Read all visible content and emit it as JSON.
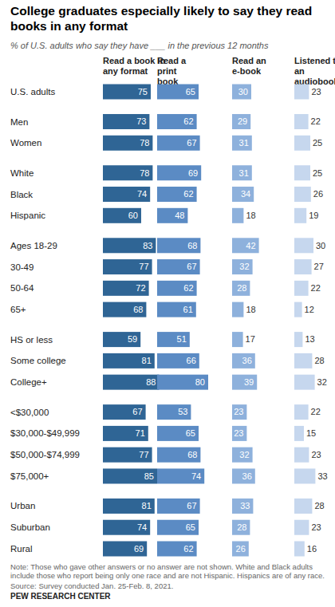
{
  "chart_data": {
    "type": "bar",
    "orientation": "horizontal",
    "title": "College graduates especially likely to say they read books in any format",
    "subtitle": "% of U.S. adults who say they have ___ in the previous 12 months",
    "categories": [
      "U.S. adults",
      "Men",
      "Women",
      "White",
      "Black",
      "Hispanic",
      "Ages 18-29",
      "30-49",
      "50-64",
      "65+",
      "HS or less",
      "Some college",
      "College+",
      "<$30,000",
      "$30,000-$49,999",
      "$50,000-$74,999",
      "$75,000+",
      "Urban",
      "Suburban",
      "Rural"
    ],
    "series": [
      {
        "name": "Read a book in any format",
        "color": "#2f6595",
        "values": [
          75,
          73,
          78,
          78,
          74,
          60,
          83,
          77,
          72,
          68,
          59,
          81,
          88,
          67,
          71,
          77,
          85,
          81,
          74,
          69
        ]
      },
      {
        "name": "Read a print book",
        "color": "#5b8bc4",
        "values": [
          65,
          62,
          67,
          69,
          62,
          48,
          68,
          67,
          62,
          61,
          51,
          66,
          80,
          53,
          65,
          68,
          74,
          67,
          65,
          62
        ]
      },
      {
        "name": "Read an e-book",
        "color": "#8eb1dc",
        "values": [
          30,
          29,
          31,
          31,
          34,
          18,
          42,
          32,
          28,
          18,
          17,
          36,
          39,
          23,
          23,
          32,
          36,
          33,
          28,
          26
        ]
      },
      {
        "name": "Listened to an audiobook",
        "color": "#c6d7ee",
        "values": [
          23,
          22,
          25,
          25,
          26,
          19,
          30,
          27,
          22,
          12,
          13,
          28,
          32,
          22,
          15,
          23,
          33,
          28,
          23,
          16
        ]
      }
    ],
    "xlim": [
      0,
      100
    ],
    "tick_labels": false,
    "data_labels": true,
    "annotations": [
      "Note: Those who gave other answers or no answer are not shown. White and Black adults include those who report being only one race and are not Hispanic. Hispanics are of any race.",
      "Source: Survey conducted Jan. 25-Feb. 8, 2021.",
      "PEW RESEARCH CENTER"
    ]
  }
}
